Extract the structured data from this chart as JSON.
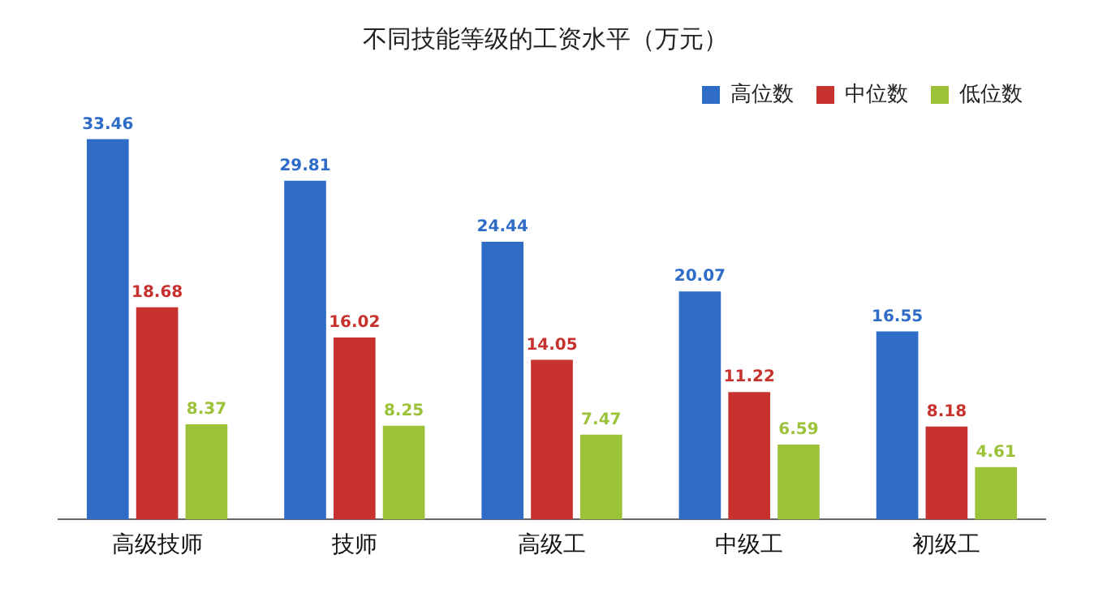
{
  "chart_data": {
    "type": "bar",
    "title": "不同技能等级的工资水平（万元）",
    "categories": [
      "高级技师",
      "技师",
      "高级工",
      "中级工",
      "初级工"
    ],
    "series": [
      {
        "name": "高位数",
        "color": "#2e6cc8",
        "values": [
          33.46,
          29.81,
          24.44,
          20.07,
          16.55
        ]
      },
      {
        "name": "中位数",
        "color": "#c8322e",
        "values": [
          18.68,
          16.02,
          14.05,
          11.22,
          8.18
        ]
      },
      {
        "name": "低位数",
        "color": "#9cc23a",
        "values": [
          8.37,
          8.25,
          7.47,
          6.59,
          4.61
        ]
      }
    ],
    "data_labels": true,
    "legend": "top right",
    "grid": false
  }
}
